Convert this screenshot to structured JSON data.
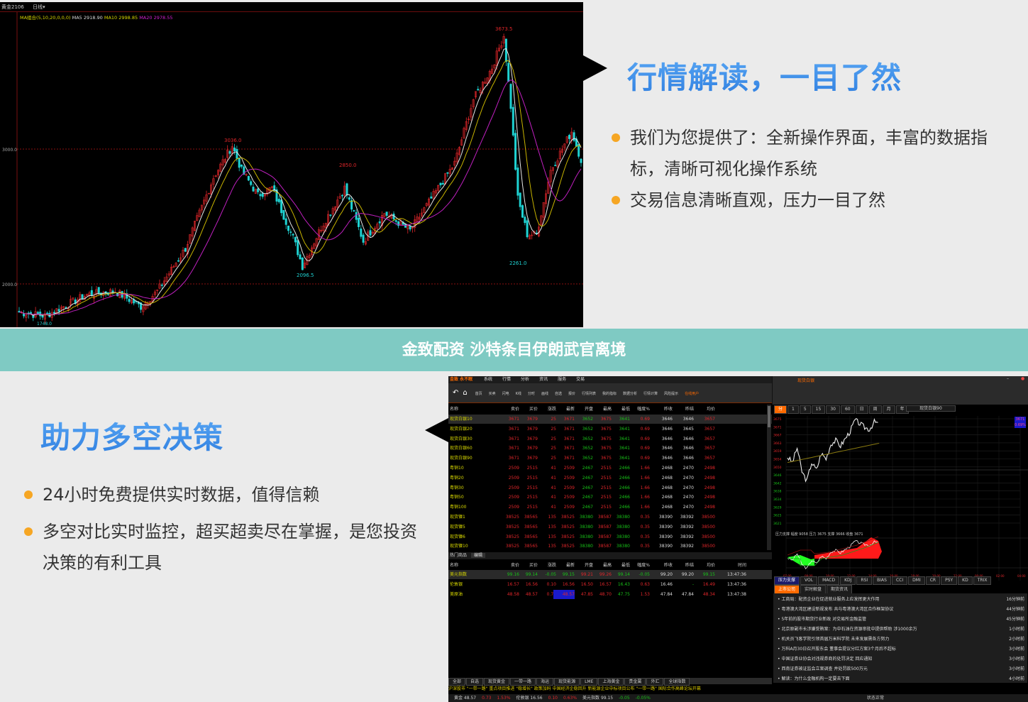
{
  "top_chart": {
    "header": {
      "symbol": "黄金2106",
      "period": "日线",
      "ma_label": "MA组合(5,10,20,0,0,0)",
      "ma5": "MA5 2918.90",
      "ma10": "MA10 2998.85",
      "ma20": "MA20 2978.55"
    },
    "y_ticks": [
      "3000.0",
      "2000.0"
    ],
    "annotations": {
      "high1": "3036.0",
      "high2": "2850.0",
      "low1": "2096.5",
      "peak": "3673.5",
      "low2": "2261.0",
      "start": "1748.0"
    },
    "colors": {
      "up": "#e0262a",
      "down": "#1fd3d3",
      "ma5": "#e8e8e8",
      "ma10": "#c8b400",
      "ma20": "#c020c0"
    },
    "price_waypoints": [
      [
        0,
        1790
      ],
      [
        11,
        1763
      ],
      [
        29,
        1921
      ],
      [
        41,
        1947
      ],
      [
        52,
        1832
      ],
      [
        59,
        1947
      ],
      [
        71,
        2263
      ],
      [
        83,
        2789
      ],
      [
        91,
        3026
      ],
      [
        95,
        2842
      ],
      [
        102,
        2658
      ],
      [
        108,
        2711
      ],
      [
        117,
        2342
      ],
      [
        121,
        2132
      ],
      [
        129,
        2421
      ],
      [
        139,
        2711
      ],
      [
        147,
        2316
      ],
      [
        156,
        2526
      ],
      [
        167,
        2395
      ],
      [
        177,
        2658
      ],
      [
        186,
        2895
      ],
      [
        194,
        3368
      ],
      [
        202,
        3605
      ],
      [
        207,
        3842
      ],
      [
        210,
        3316
      ],
      [
        213,
        2632
      ],
      [
        217,
        2368
      ],
      [
        221,
        2368
      ],
      [
        227,
        2842
      ],
      [
        236,
        3132
      ],
      [
        240,
        2921
      ]
    ]
  },
  "section1": {
    "title": "行情解读，一目了然",
    "bullets": [
      "我们为您提供了：全新操作界面，丰富的数据指标，清晰可视化操作系统",
      "交易信息清晰直观，压力一目了然"
    ]
  },
  "banner": {
    "text": "金致配资 沙特条目伊朗武官离境"
  },
  "section2": {
    "title": "助力多空决策",
    "bullets": [
      "24小时免费提供实时数据，值得信赖",
      "多空对比实时监控，超买超卖尽在掌握，是您投资决策的有利工具"
    ]
  },
  "software": {
    "brand": "金致 永不眠",
    "menu": [
      "系统",
      "行情",
      "分析",
      "资讯",
      "服务",
      "交易"
    ],
    "toolbar": [
      "首页",
      "买卖",
      "闪电",
      "K线",
      "分时",
      "画线",
      "自选",
      "报价",
      "行情列表",
      "我的指标",
      "数据分析",
      "行情计算",
      "风险提示",
      "在线用户"
    ],
    "columns": [
      "名称",
      "卖价",
      "买价",
      "涨跌",
      "最新",
      "开盘",
      "最高",
      "最低",
      "幅度%",
      "昨收",
      "昨结",
      "均价"
    ],
    "rows": [
      {
        "name": "现货白银10",
        "v": [
          "3671",
          "3679",
          "25",
          "3671",
          "3652",
          "3675",
          "3641",
          "0.69",
          "3646",
          "3646",
          "3657"
        ]
      },
      {
        "name": "现货白银20",
        "v": [
          "3671",
          "3679",
          "25",
          "3671",
          "3652",
          "3675",
          "3641",
          "0.69",
          "3646",
          "3645",
          "3657"
        ]
      },
      {
        "name": "现货白银30",
        "v": [
          "3671",
          "3679",
          "25",
          "3671",
          "3652",
          "3675",
          "3641",
          "0.69",
          "3646",
          "3646",
          "3657"
        ]
      },
      {
        "name": "现货白银60",
        "v": [
          "3671",
          "3679",
          "25",
          "3671",
          "3652",
          "3675",
          "3641",
          "0.69",
          "3646",
          "3646",
          "3657"
        ]
      },
      {
        "name": "现货白银90",
        "v": [
          "3671",
          "3679",
          "25",
          "3671",
          "3652",
          "3675",
          "3641",
          "0.69",
          "3646",
          "3646",
          "3657"
        ]
      },
      {
        "name": "粤铜10",
        "v": [
          "2509",
          "2515",
          "41",
          "2509",
          "2467",
          "2515",
          "2466",
          "1.66",
          "2468",
          "2470",
          "2498"
        ]
      },
      {
        "name": "粤铜20",
        "v": [
          "2509",
          "2515",
          "41",
          "2509",
          "2467",
          "2515",
          "2466",
          "1.66",
          "2468",
          "2470",
          "2498"
        ]
      },
      {
        "name": "粤铜30",
        "v": [
          "2509",
          "2515",
          "41",
          "2509",
          "2467",
          "2515",
          "2466",
          "1.66",
          "2468",
          "2470",
          "2498"
        ]
      },
      {
        "name": "粤铜50",
        "v": [
          "2509",
          "2515",
          "41",
          "2509",
          "2467",
          "2515",
          "2466",
          "1.66",
          "2468",
          "2470",
          "2498"
        ]
      },
      {
        "name": "粤铜100",
        "v": [
          "2509",
          "2515",
          "41",
          "2509",
          "2467",
          "2515",
          "2466",
          "1.66",
          "2468",
          "2470",
          "2498"
        ]
      },
      {
        "name": "现货镍1",
        "v": [
          "38525",
          "38565",
          "135",
          "38525",
          "38380",
          "38587",
          "38380",
          "0.35",
          "38390",
          "38392",
          "38500"
        ]
      },
      {
        "name": "现货镍5",
        "v": [
          "38525",
          "38565",
          "135",
          "38525",
          "38380",
          "38587",
          "38380",
          "0.35",
          "38390",
          "38392",
          "38500"
        ]
      },
      {
        "name": "现货镍6",
        "v": [
          "38525",
          "38565",
          "135",
          "38525",
          "38380",
          "38587",
          "38380",
          "0.35",
          "38390",
          "38392",
          "38500"
        ]
      },
      {
        "name": "现货镍10",
        "v": [
          "38525",
          "38565",
          "135",
          "38525",
          "38380",
          "38587",
          "38380",
          "0.35",
          "38390",
          "38392",
          "38500"
        ]
      }
    ],
    "row_colors": [
      "r",
      "r",
      "r",
      "r",
      "g",
      "r",
      "g",
      "r",
      "w",
      "w",
      "r"
    ],
    "hot_label": "热门商品",
    "hot_edit": "编辑",
    "hot_columns": [
      "名称",
      "卖价",
      "买价",
      "涨跌",
      "最新",
      "开盘",
      "最高",
      "最低",
      "幅度%",
      "昨收",
      "昨结",
      "均价",
      "时间"
    ],
    "hot_rows": [
      {
        "name": "美元指数",
        "v": [
          "99.16",
          "99.14",
          "-0.05",
          "99.15",
          "99.21",
          "99.26",
          "99.14",
          "-0.05",
          "99.20",
          "99.20",
          "99.15",
          "13:47:36"
        ],
        "c": [
          "g",
          "g",
          "g",
          "g",
          "r",
          "r",
          "g",
          "g",
          "w",
          "w",
          "g",
          "w"
        ]
      },
      {
        "name": "伦敦银",
        "v": [
          "16.57",
          "16.56",
          "0.10",
          "16.56",
          "16.50",
          "16.57",
          "16.43",
          "0.63",
          "16.46",
          "-",
          "16.49",
          "13:47:36"
        ],
        "c": [
          "r",
          "r",
          "r",
          "r",
          "r",
          "r",
          "g",
          "r",
          "w",
          "g",
          "r",
          "w"
        ]
      },
      {
        "name": "美原油",
        "v": [
          "48.58",
          "48.57",
          "0.73",
          "48.57",
          "47.85",
          "48.70",
          "47.75",
          "1.53",
          "47.84",
          "47.84",
          "48.34",
          "13:47:38"
        ],
        "c": [
          "r",
          "r",
          "r",
          "r",
          "r",
          "r",
          "g",
          "r",
          "w",
          "w",
          "r",
          "w"
        ]
      }
    ],
    "bottom_tabs": [
      "全部",
      "自选",
      "现货黄金",
      "一带一路",
      "海运",
      "现货能源",
      "LME",
      "上海黄金",
      "贵金属",
      "外汇",
      "全球指数"
    ],
    "ticker": "沪深股市 \"一带一路\" 重点项目推进    \"稳增长\" 政策加码 中国经济企稳回升    新能源企业中标项目公布    \"一带一路\" 国际合作高峰论坛开幕",
    "status": [
      "黄金 48.57",
      "0.73",
      "1.53%",
      "伦敦银 16.56",
      "0.10",
      "0.63%",
      "美元指数 99.15",
      "-0.05",
      "-0.05%"
    ],
    "chart_title": "现货白银",
    "periods": [
      "分",
      "1",
      "5",
      "15",
      "30",
      "60",
      "日",
      "周",
      "月",
      "年"
    ],
    "chart_symbol": "现货白银90",
    "y_labels": [
      "3675",
      "3671",
      "3667",
      "3663",
      "3659",
      "3654",
      "3650",
      "3646",
      "3642",
      "3638",
      "3634",
      "3629",
      "3625",
      "3621"
    ],
    "price_box": [
      "3671",
      "0.69%"
    ],
    "indicator_legend": "压力支撑 幅度 9058 压力 3675 支撑 3666 收盘 3671",
    "time_labels": [
      "07:00",
      "09:00",
      "10:00",
      "12:00",
      "14:00",
      "16:00",
      "18:00",
      "20:00",
      "22:00",
      "00:00",
      "02:00",
      "04:00"
    ],
    "indicator_tabs": [
      "压力支撑",
      "VOL",
      "MACD",
      "KDJ",
      "RSI",
      "BIAS",
      "CCI",
      "DMI",
      "CR",
      "PSY",
      "KD",
      "TRIX"
    ],
    "news_tabs": [
      "上市公司",
      "实时解盘",
      "期货资讯"
    ],
    "news": [
      {
        "title": "工商局：配资企业在促进就业服务上应发挥更大作用",
        "time": "16分钟前"
      },
      {
        "title": "粤港澳大湾区建设新规发布 共与粤港澳大湾区合作框架协议",
        "time": "44分钟前"
      },
      {
        "title": "5年前的股市期货行业新政 对交易所金融监管",
        "time": "45分钟前"
      },
      {
        "title": "北京原副市长涉嫌受贿案：为中石油在资源审批中提供帮助 涉1000余万",
        "time": "1小时前"
      },
      {
        "title": "机关员飞客学院引领首届万米科学院 未来发展需各方努力",
        "time": "2小时前"
      },
      {
        "title": "万科A月30日召开股东会 董事会提议分红方案3个月后不超标",
        "time": "3小时前"
      },
      {
        "title": "中国证券业协会对违规券商的处罚决定 回应通知",
        "time": "3小时前"
      },
      {
        "title": "西南证券被证监会立案调查 并处罚款500万元",
        "time": "3小时前"
      },
      {
        "title": "解读：为什么金融机构一定要去下面",
        "time": "4小时前"
      }
    ],
    "status_center": "状态正常",
    "intraday": [
      3653,
      3650,
      3658,
      3645,
      3640,
      3650,
      3646,
      3655,
      3652,
      3660,
      3662,
      3659,
      3663,
      3667,
      3673,
      3671,
      3669,
      3668,
      3672,
      3671
    ],
    "colors": {
      "brand_orange": "#ff6a00",
      "fill_up": "#ff1a1a",
      "fill_down": "#22ff22"
    }
  }
}
